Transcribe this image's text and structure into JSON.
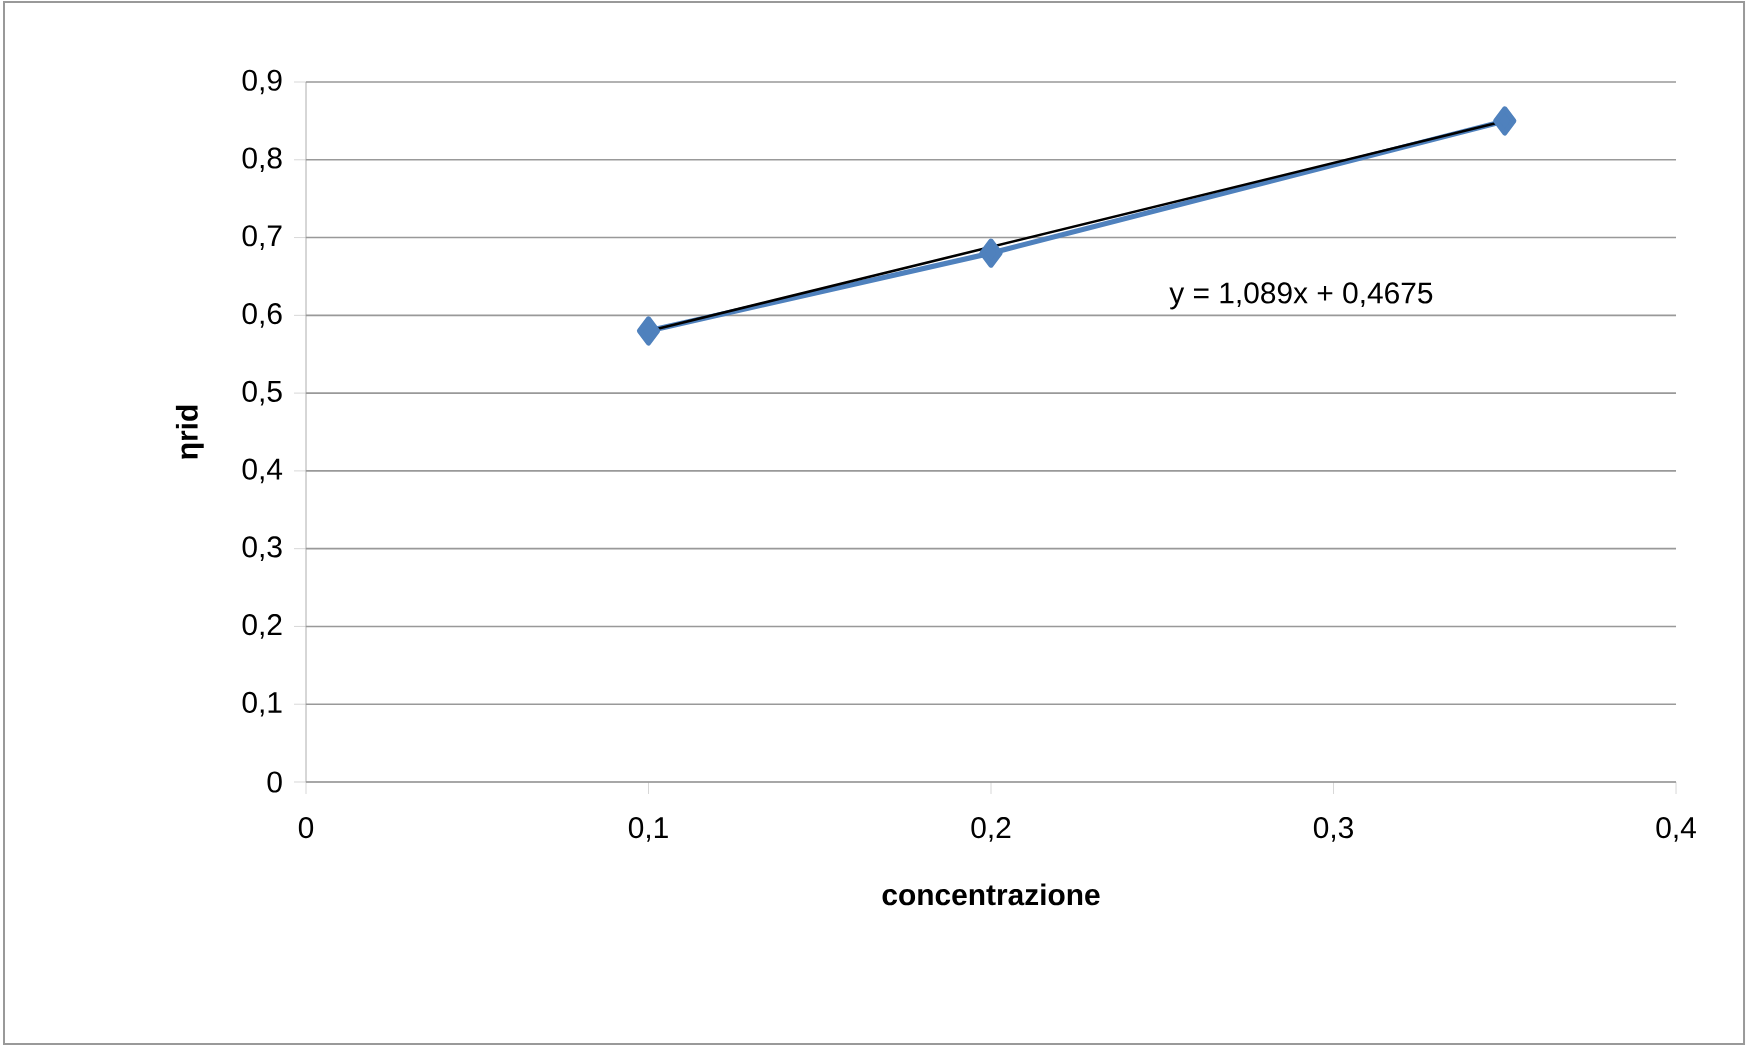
{
  "chart_data": {
    "type": "line",
    "xlabel": "concentrazione",
    "ylabel": "ηrid",
    "xlim": [
      0,
      0.4
    ],
    "xticks": [
      0,
      {
        "value": 0.1,
        "label": "0,1"
      },
      {
        "value": 0.2,
        "label": "0,2"
      },
      {
        "value": 0.3,
        "label": "0,3"
      },
      {
        "value": 0.4,
        "label": "0,4"
      }
    ],
    "ylim": [
      0,
      0.9
    ],
    "yticks": [
      0,
      {
        "value": 0.1,
        "label": "0,1"
      },
      {
        "value": 0.2,
        "label": "0,2"
      },
      {
        "value": 0.3,
        "label": "0,3"
      },
      {
        "value": 0.4,
        "label": "0,4"
      },
      {
        "value": 0.5,
        "label": "0,5"
      },
      {
        "value": 0.6,
        "label": "0,6"
      },
      {
        "value": 0.7,
        "label": "0,7"
      },
      {
        "value": 0.8,
        "label": "0,8"
      },
      {
        "value": 0.9,
        "label": "0,9"
      }
    ],
    "grid": "y",
    "series": [
      {
        "type": "line",
        "color": "#4f81bd",
        "marker": "diamond",
        "x": [
          0.1,
          0.2,
          0.35
        ],
        "values": [
          0.58,
          0.68,
          0.85
        ]
      },
      {
        "type": "line",
        "color": "#000000",
        "marker": "none",
        "x": [
          0.1,
          0.35
        ],
        "values": [
          0.58,
          0.85
        ]
      }
    ],
    "annotations": [
      "y = 1,089x + 0,4675"
    ]
  }
}
